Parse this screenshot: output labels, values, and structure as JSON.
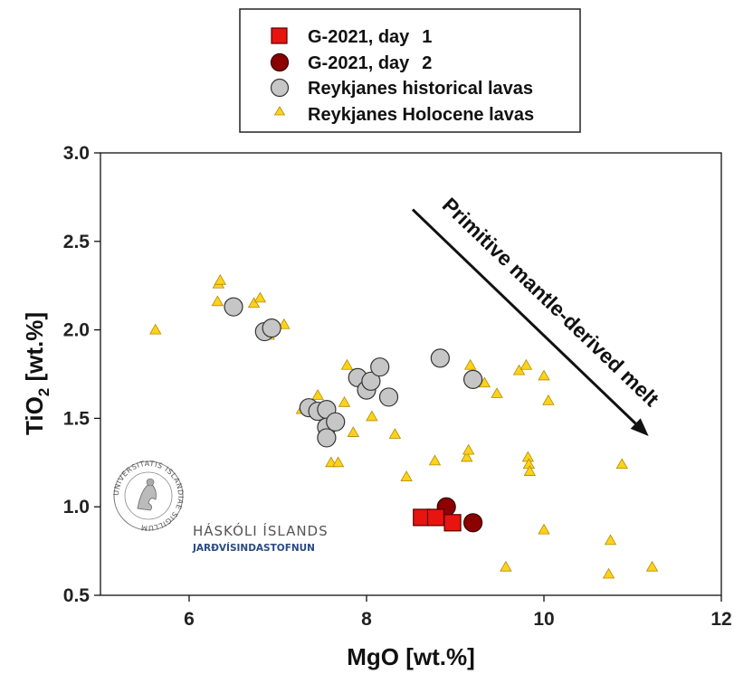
{
  "chart_data": {
    "type": "scatter",
    "xlabel": "MgO [wt.%]",
    "ylabel": "TiO",
    "ylabel_sub": "2",
    "ylabel_suffix": " [wt.%]",
    "xlim": [
      5,
      12
    ],
    "ylim": [
      0.5,
      3.0
    ],
    "xticks": [
      "6",
      "8",
      "10",
      "12"
    ],
    "yticks": [
      "0.5",
      "1.0",
      "1.5",
      "2.0",
      "2.5",
      "3.0"
    ],
    "legend_position": "top-center, outside plot",
    "series": [
      {
        "name": "G-2021, day",
        "name_suffix": "1",
        "marker": "square",
        "color": "#e8140f",
        "points": [
          [
            8.62,
            0.94
          ],
          [
            8.78,
            0.94
          ],
          [
            8.97,
            0.91
          ]
        ]
      },
      {
        "name": "G-2021, day",
        "name_suffix": "2",
        "marker": "circle",
        "color": "#8b0000",
        "points": [
          [
            8.9,
            1.0
          ],
          [
            9.2,
            0.91
          ]
        ]
      },
      {
        "name": "Reykjanes historical lavas",
        "marker": "circle",
        "color": "#c6c6c6",
        "points": [
          [
            6.5,
            2.13
          ],
          [
            6.85,
            1.99
          ],
          [
            6.93,
            2.01
          ],
          [
            7.35,
            1.56
          ],
          [
            7.45,
            1.54
          ],
          [
            7.55,
            1.55
          ],
          [
            7.55,
            1.45
          ],
          [
            7.55,
            1.39
          ],
          [
            7.65,
            1.48
          ],
          [
            7.9,
            1.73
          ],
          [
            8.0,
            1.66
          ],
          [
            8.05,
            1.71
          ],
          [
            8.15,
            1.79
          ],
          [
            8.25,
            1.62
          ],
          [
            8.83,
            1.84
          ],
          [
            9.2,
            1.72
          ]
        ]
      },
      {
        "name": "Reykjanes Holocene lavas",
        "marker": "triangle",
        "color": "#ffd21a",
        "points": [
          [
            5.62,
            2.0
          ],
          [
            6.33,
            2.26
          ],
          [
            6.35,
            2.28
          ],
          [
            6.32,
            2.16
          ],
          [
            6.73,
            2.15
          ],
          [
            6.8,
            2.18
          ],
          [
            6.9,
            1.97
          ],
          [
            7.07,
            2.03
          ],
          [
            7.27,
            1.55
          ],
          [
            7.45,
            1.63
          ],
          [
            7.55,
            1.52
          ],
          [
            7.6,
            1.25
          ],
          [
            7.68,
            1.25
          ],
          [
            7.75,
            1.59
          ],
          [
            7.78,
            1.8
          ],
          [
            7.85,
            1.42
          ],
          [
            8.06,
            1.51
          ],
          [
            8.07,
            1.74
          ],
          [
            8.32,
            1.41
          ],
          [
            8.45,
            1.17
          ],
          [
            8.77,
            1.26
          ],
          [
            9.13,
            1.28
          ],
          [
            9.15,
            1.32
          ],
          [
            9.17,
            1.8
          ],
          [
            9.33,
            1.7
          ],
          [
            9.47,
            1.64
          ],
          [
            9.57,
            0.66
          ],
          [
            9.72,
            1.77
          ],
          [
            9.8,
            1.8
          ],
          [
            9.82,
            1.28
          ],
          [
            9.83,
            1.24
          ],
          [
            9.84,
            1.2
          ],
          [
            10.0,
            0.87
          ],
          [
            10.0,
            1.74
          ],
          [
            10.05,
            1.6
          ],
          [
            10.73,
            0.62
          ],
          [
            10.75,
            0.81
          ],
          [
            10.88,
            1.24
          ],
          [
            11.22,
            0.66
          ]
        ]
      }
    ],
    "annotation": {
      "text": "Primitive mantle-derived melt",
      "arrow_from": [
        8.52,
        2.68
      ],
      "arrow_to": [
        11.18,
        1.4
      ]
    }
  },
  "logo": {
    "name": "HÁSKÓLI ÍSLANDS",
    "subtitle": "JARÐVÍSINDASTOFNUN",
    "seal_text": "UNIVERSITATIS ISLANDIAE SIGILLUM"
  }
}
